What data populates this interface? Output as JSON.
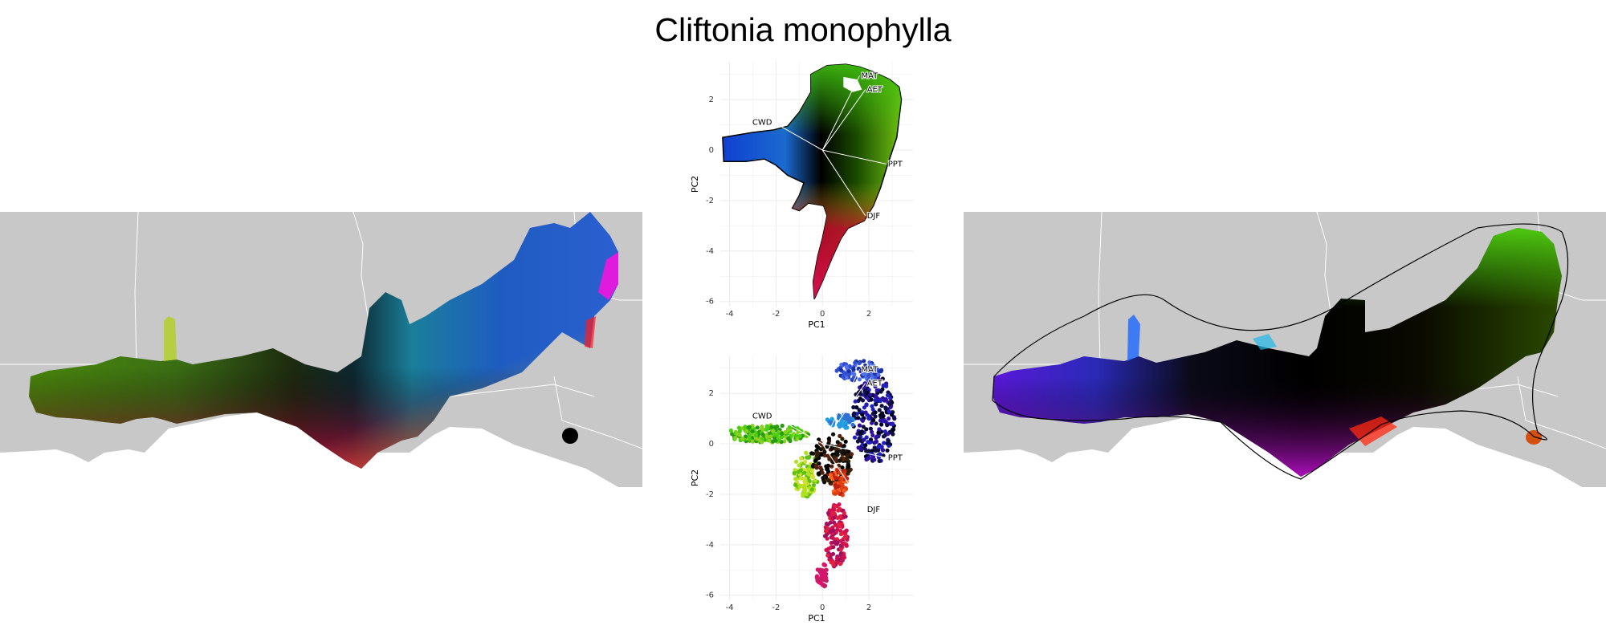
{
  "title": "Cliftonia monophylla",
  "colors": {
    "land": "#c8c8c8",
    "border": "#ffffff",
    "panel_bg": "#ffffff",
    "grid": "#ebebeb",
    "vector": "#ffffff",
    "outline": "#000000"
  },
  "maps": [
    {
      "name": "left-map",
      "description_type": "range-map",
      "fill": "rgb-pca-raster"
    },
    {
      "name": "right-map",
      "description_type": "range-map",
      "fill": "rgb-pca-interpolated-with-hull"
    }
  ],
  "chart_data": [
    {
      "type": "scatter",
      "panel": "top",
      "title": "",
      "xlabel": "PC1",
      "ylabel": "PC2",
      "xlim": [
        -4.4,
        3.9
      ],
      "ylim": [
        -6.2,
        3.5
      ],
      "x_ticks": [
        -4,
        -2,
        0,
        2
      ],
      "y_ticks": [
        2,
        0,
        -2,
        -4,
        -6
      ],
      "grid": true,
      "vectors": [
        {
          "label": "MAT",
          "x": 1.6,
          "y": 2.95
        },
        {
          "label": "AET",
          "x": 1.85,
          "y": 2.4
        },
        {
          "label": "CWD",
          "x": -2.1,
          "y": 1.1
        },
        {
          "label": "PPT",
          "x": 2.75,
          "y": -0.55
        },
        {
          "label": "DJF",
          "x": 1.85,
          "y": -2.6
        }
      ]
    },
    {
      "type": "scatter",
      "panel": "bottom",
      "title": "",
      "xlabel": "PC1",
      "ylabel": "PC2",
      "xlim": [
        -4.4,
        3.9
      ],
      "ylim": [
        -6.2,
        3.5
      ],
      "x_ticks": [
        -4,
        -2,
        0,
        2
      ],
      "y_ticks": [
        2,
        0,
        -2,
        -4,
        -6
      ],
      "grid": true,
      "vectors": [
        {
          "label": "MAT",
          "x": 1.6,
          "y": 2.95
        },
        {
          "label": "AET",
          "x": 1.85,
          "y": 2.4
        },
        {
          "label": "CWD",
          "x": -2.1,
          "y": 1.1
        },
        {
          "label": "PPT",
          "x": 2.75,
          "y": -0.55
        },
        {
          "label": "DJF",
          "x": 1.85,
          "y": -2.6
        }
      ]
    }
  ]
}
